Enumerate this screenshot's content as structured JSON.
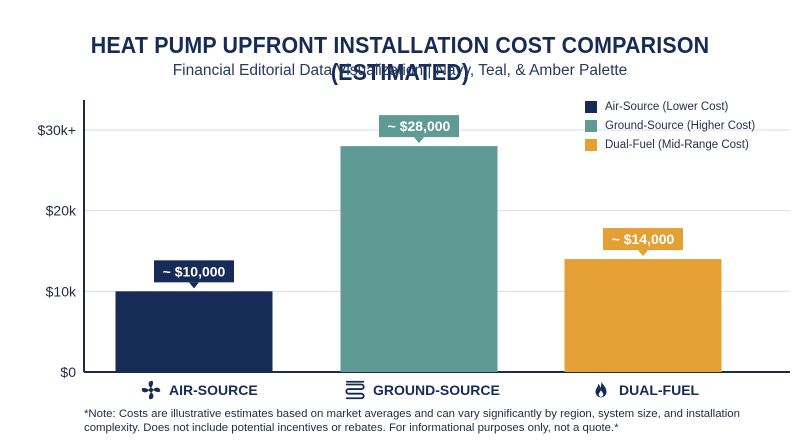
{
  "title": "HEAT PUMP UPFRONT INSTALLATION COST COMPARISON (ESTIMATED)",
  "subtitle": "Financial Editorial Data Visualization | Navy, Teal, & Amber Palette",
  "note": "*Note: Costs are illustrative estimates based on market averages and can vary significantly by region, system size, and installation complexity. Does not include potential incentives or rebates. For informational purposes only, not a quote.*",
  "colors": {
    "navy": "#162b55",
    "teal": "#5f9a94",
    "amber": "#e4a035",
    "grid": "#d9dde3",
    "axis": "#1f2a44"
  },
  "legend": [
    {
      "label": "Air-Source (Lower Cost)",
      "color": "#162b55"
    },
    {
      "label": "Ground-Source (Higher Cost)",
      "color": "#5f9a94"
    },
    {
      "label": "Dual-Fuel (Mid-Range Cost)",
      "color": "#e4a035"
    }
  ],
  "categories_display": [
    {
      "label": "AIR-SOURCE",
      "icon": "fan-icon"
    },
    {
      "label": "GROUND-SOURCE",
      "icon": "ground-coil-icon"
    },
    {
      "label": "DUAL-FUEL",
      "icon": "flame-icon"
    }
  ],
  "chart_data": {
    "type": "bar",
    "categories": [
      "AIR-SOURCE",
      "GROUND-SOURCE",
      "DUAL-FUEL"
    ],
    "values": [
      10000,
      28000,
      14000
    ],
    "data_labels": [
      "~ $10,000",
      "~ $28,000",
      "~ $14,000"
    ],
    "colors": [
      "#162b55",
      "#5f9a94",
      "#e4a035"
    ],
    "title": "HEAT PUMP UPFRONT INSTALLATION COST COMPARISON (ESTIMATED)",
    "xlabel": "",
    "ylabel": "",
    "ylim": [
      0,
      30000
    ],
    "yticks": [
      0,
      10000,
      20000,
      30000
    ],
    "ytick_labels": [
      "$0",
      "$10k",
      "$20k",
      "$30k+"
    ],
    "grid": true,
    "legend_position": "top-right"
  }
}
